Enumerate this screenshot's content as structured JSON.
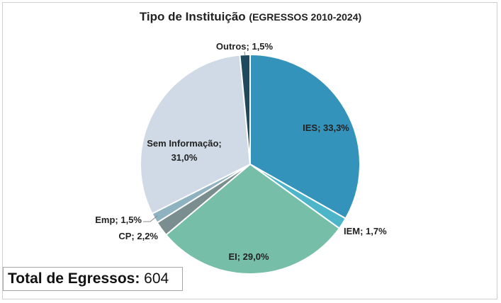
{
  "chart_data": {
    "type": "pie",
    "title": "Tipo de Instituição",
    "subtitle": "(EGRESSOS 2010-2024)",
    "slices": [
      {
        "name": "IES",
        "value": 33.3,
        "label": "IES; 33,3%",
        "color": "#3493bb"
      },
      {
        "name": "IEM",
        "value": 1.7,
        "label": "IEM; 1,7%",
        "color": "#4db5c9"
      },
      {
        "name": "EI",
        "value": 29.0,
        "label": "EI; 29,0%",
        "color": "#76bea7"
      },
      {
        "name": "CP",
        "value": 2.2,
        "label": "CP; 2,2%",
        "color": "#7a8d8f"
      },
      {
        "name": "Emp",
        "value": 1.5,
        "label": "Emp; 1,5%",
        "color": "#8fb2c1"
      },
      {
        "name": "Sem Informação",
        "value": 31.0,
        "label_lines": [
          "Sem Informação;",
          "31,0%"
        ],
        "color": "#cfdae6"
      },
      {
        "name": "Outros",
        "value": 1.5,
        "label": "Outros; 1,5%",
        "color": "#1f4a5e"
      }
    ],
    "legend": "none"
  },
  "total": {
    "label": "Total de Egressos:",
    "value": "604"
  }
}
